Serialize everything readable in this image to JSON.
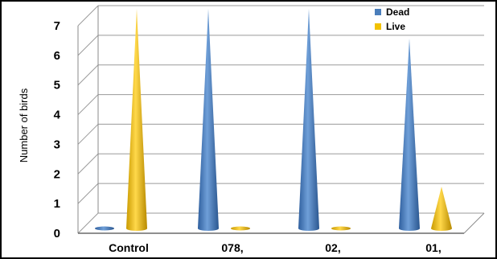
{
  "chart_data": {
    "type": "bar",
    "style": "3d-cone",
    "title": "",
    "xlabel": "",
    "ylabel": "Number of birds",
    "ylim": [
      0,
      7
    ],
    "yticks": [
      "0",
      "1",
      "2",
      "3",
      "4",
      "5",
      "6",
      "7"
    ],
    "categories": [
      "Control",
      "078,",
      "02,",
      "01,"
    ],
    "series": [
      {
        "name": "Dead",
        "values": [
          0,
          7,
          7,
          6
        ],
        "color": "#4a7ebb"
      },
      {
        "name": "Live",
        "values": [
          7,
          0,
          0,
          1
        ],
        "color": "#f2c200"
      }
    ],
    "grid": true,
    "legend": "top-right"
  }
}
